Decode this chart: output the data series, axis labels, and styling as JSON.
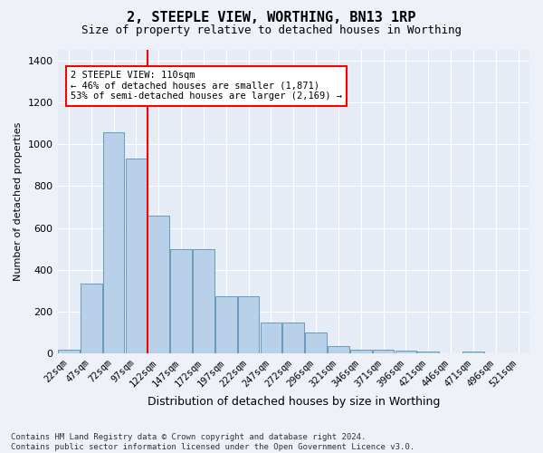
{
  "title": "2, STEEPLE VIEW, WORTHING, BN13 1RP",
  "subtitle": "Size of property relative to detached houses in Worthing",
  "xlabel": "Distribution of detached houses by size in Worthing",
  "ylabel": "Number of detached properties",
  "footer": "Contains HM Land Registry data © Crown copyright and database right 2024.\nContains public sector information licensed under the Open Government Licence v3.0.",
  "bar_categories": [
    "22sqm",
    "47sqm",
    "72sqm",
    "97sqm",
    "122sqm",
    "147sqm",
    "172sqm",
    "197sqm",
    "222sqm",
    "247sqm",
    "272sqm",
    "296sqm",
    "321sqm",
    "346sqm",
    "371sqm",
    "396sqm",
    "421sqm",
    "446sqm",
    "471sqm",
    "496sqm",
    "521sqm"
  ],
  "bar_values": [
    20,
    335,
    1055,
    930,
    660,
    500,
    500,
    275,
    275,
    150,
    150,
    100,
    35,
    20,
    20,
    15,
    10,
    0,
    10,
    0,
    0
  ],
  "bar_color": "#b8d0e8",
  "bar_edge_color": "#6699bb",
  "ylim": [
    0,
    1450
  ],
  "yticks": [
    0,
    200,
    400,
    600,
    800,
    1000,
    1200,
    1400
  ],
  "property_label": "2 STEEPLE VIEW: 110sqm",
  "annotation_line1": "← 46% of detached houses are smaller (1,871)",
  "annotation_line2": "53% of semi-detached houses are larger (2,169) →",
  "vline_x": 3.52,
  "background_color": "#eef2f8",
  "plot_background": "#e6ecf5",
  "title_fontsize": 11,
  "subtitle_fontsize": 9,
  "ylabel_fontsize": 8,
  "xlabel_fontsize": 9,
  "tick_fontsize": 8,
  "xtick_fontsize": 7.5,
  "footer_fontsize": 6.5
}
